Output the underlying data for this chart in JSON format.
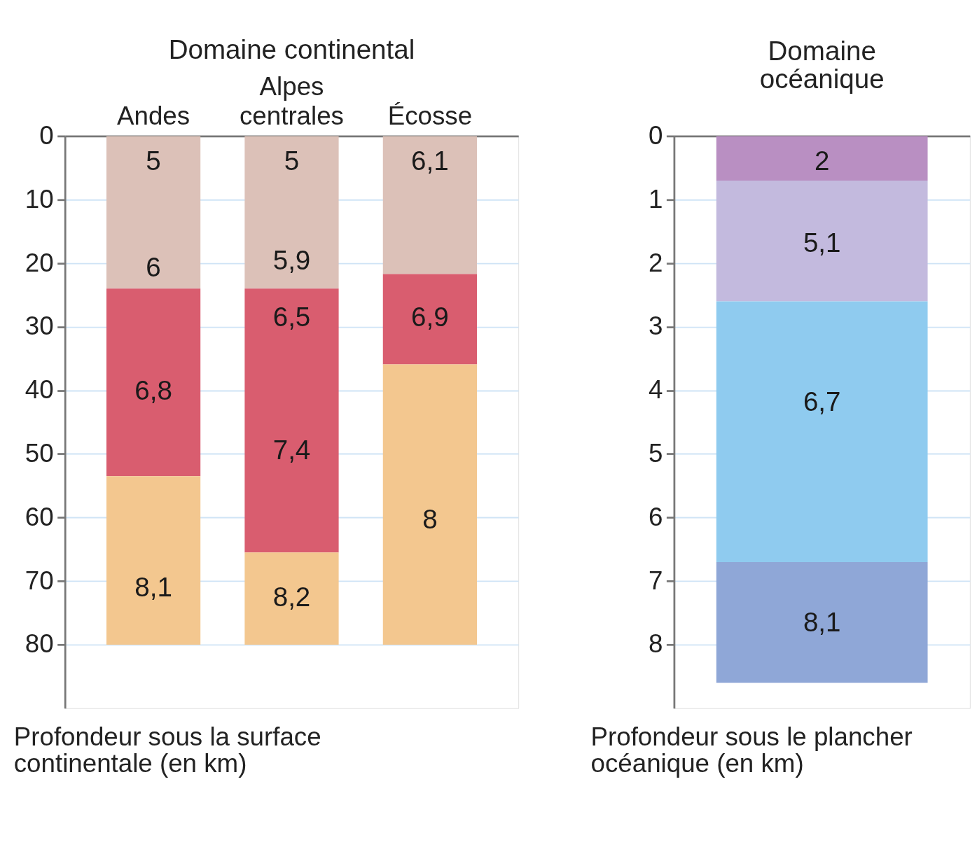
{
  "chart_data": [
    {
      "type": "bar",
      "stacked": true,
      "title": "Domaine continental",
      "categories": [
        "Andes",
        "Alpes\ncentrales",
        "Écosse"
      ],
      "series": [
        {
          "color": "#dcc1b8",
          "values": [
            24,
            24,
            21.7
          ]
        },
        {
          "color": "#d95d6f",
          "values": [
            29.5,
            41.5,
            14.2
          ]
        },
        {
          "color": "#f3c78f",
          "values": [
            26.5,
            14.5,
            44.1
          ]
        }
      ],
      "ylim": [
        90,
        0
      ],
      "yticks": [
        0,
        10,
        20,
        30,
        40,
        50,
        60,
        70,
        80
      ],
      "grid": "y",
      "legend": false,
      "ylabel": "Profondeur sous la surface\ncontinentale (en km)",
      "annotations": [
        "5",
        "6",
        "6,8",
        "8,1",
        "5",
        "5,9",
        "6,5",
        "7,4",
        "8,2",
        "6,1",
        "6,9",
        "8"
      ]
    },
    {
      "type": "bar",
      "stacked": true,
      "title": "Domaine\nocéanique",
      "categories": [
        null
      ],
      "series": [
        {
          "color": "#b98fc2",
          "values": [
            0.7
          ]
        },
        {
          "color": "#c3bade",
          "values": [
            1.9
          ]
        },
        {
          "color": "#8fcbef",
          "values": [
            4.1
          ]
        },
        {
          "color": "#8fa7d7",
          "values": [
            1.9
          ]
        }
      ],
      "ylim": [
        9,
        0
      ],
      "yticks": [
        0,
        1,
        2,
        3,
        4,
        5,
        6,
        7,
        8
      ],
      "grid": "y",
      "legend": false,
      "ylabel": "Profondeur sous le plancher\nocéanique (en km)",
      "annotations": [
        "2",
        "5,1",
        "6,7",
        "8,1"
      ]
    }
  ]
}
